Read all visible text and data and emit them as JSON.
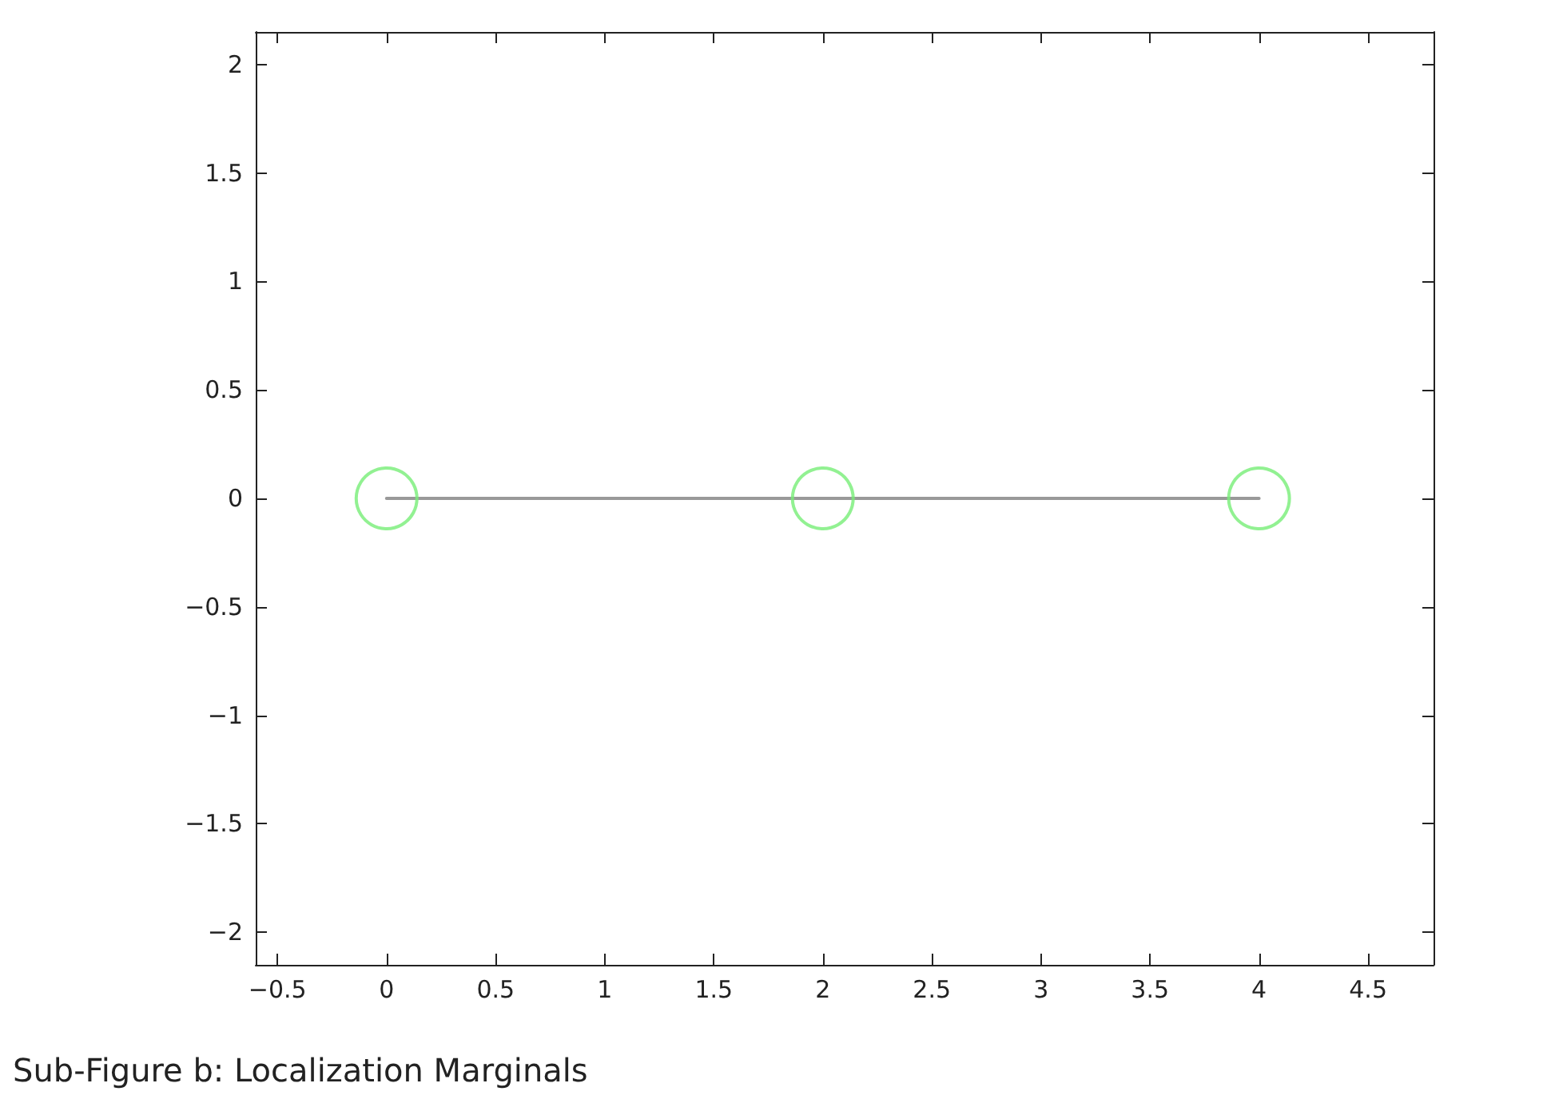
{
  "chart_data": {
    "type": "line",
    "annotations": [
      "Sub-Figure b: Localization Marginals"
    ],
    "series": [
      {
        "color": "#999999",
        "x": [
          0,
          2,
          4
        ],
        "values": [
          0,
          0,
          0
        ],
        "marker": "none",
        "line_style": "solid"
      },
      {
        "type": "scatter",
        "color": "#77ee77",
        "x": [
          0,
          2,
          4
        ],
        "values": [
          0,
          0,
          0
        ],
        "marker": "circle"
      }
    ],
    "xlim": [
      -0.6,
      4.8
    ],
    "xticks": [
      {
        "value": -0.5,
        "label": "−0.5"
      },
      0,
      0.5,
      1,
      1.5,
      2,
      2.5,
      3,
      3.5,
      4,
      4.5
    ],
    "ylim": [
      -2.15,
      2.15
    ],
    "yticks": [
      {
        "value": -2,
        "label": "−2"
      },
      {
        "value": -1.5,
        "label": "−1.5"
      },
      {
        "value": -1,
        "label": "−1"
      },
      {
        "value": -0.5,
        "label": "−0.5"
      },
      0,
      0.5,
      1,
      1.5,
      2
    ],
    "grid": false
  }
}
